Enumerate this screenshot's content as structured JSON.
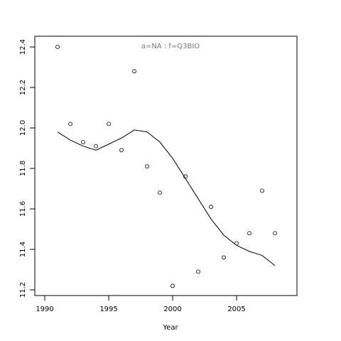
{
  "chart_data": {
    "type": "scatter",
    "title": "a=NA  :  f=Q3BIO",
    "x_label": "Year",
    "x": [
      1991,
      1992,
      1993,
      1994,
      1995,
      1996,
      1997,
      1998,
      1999,
      2000,
      2001,
      2002,
      2003,
      2004,
      2005,
      2006,
      2007,
      2008
    ],
    "series": [
      {
        "type": "scatter",
        "color": "#000000",
        "values": [
          12.4,
          12.02,
          11.93,
          11.91,
          12.02,
          11.89,
          12.28,
          11.81,
          11.68,
          11.22,
          11.76,
          11.29,
          11.61,
          11.36,
          11.43,
          11.48,
          11.69,
          11.48
        ]
      },
      {
        "type": "line",
        "color": "#000000",
        "values": [
          11.98,
          11.94,
          11.91,
          11.89,
          11.92,
          11.95,
          11.99,
          11.98,
          11.93,
          11.85,
          11.75,
          11.65,
          11.55,
          11.47,
          11.42,
          11.39,
          11.37,
          11.32
        ]
      }
    ],
    "xlim": [
      1989.22,
      2009.72
    ],
    "ylim": [
      11.172,
      12.453
    ],
    "xticks": [
      1990,
      1995,
      2000,
      2005
    ],
    "yticks": [
      11.2,
      11.4,
      11.6,
      11.8,
      {
        "value": 12,
        "label": "12.0"
      },
      12.2,
      12.4
    ]
  }
}
